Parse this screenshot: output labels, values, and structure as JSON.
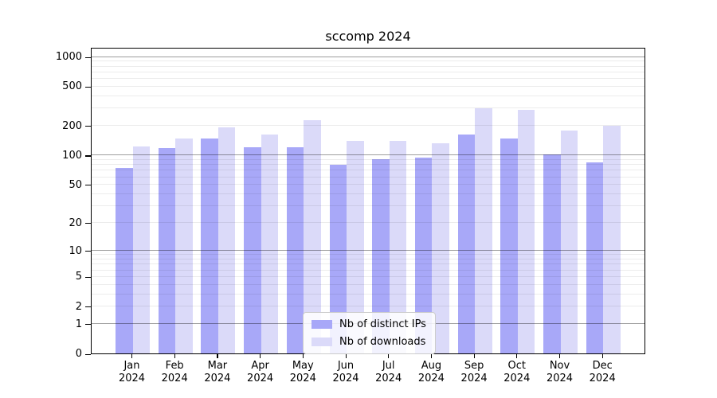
{
  "chart_data": {
    "type": "bar",
    "title": "sccomp 2024",
    "x_months": [
      "Jan",
      "Feb",
      "Mar",
      "Apr",
      "May",
      "Jun",
      "Jul",
      "Aug",
      "Sep",
      "Oct",
      "Nov",
      "Dec"
    ],
    "x_year": "2024",
    "series": [
      {
        "name": "Nb of distinct IPs",
        "color": "#a8a8f8",
        "values": [
          74,
          118,
          147,
          120,
          120,
          79,
          91,
          95,
          162,
          147,
          101,
          85
        ]
      },
      {
        "name": "Nb of downloads",
        "color": "#dbdaf9",
        "values": [
          122,
          147,
          193,
          161,
          225,
          140,
          141,
          133,
          300,
          288,
          177,
          200
        ]
      }
    ],
    "yscale": "log1p",
    "yticks": [
      0,
      1,
      2,
      5,
      10,
      20,
      50,
      100,
      200,
      500,
      1000
    ],
    "ylim": [
      0,
      1250
    ],
    "grid": {
      "show": true,
      "major_at_powers_of_ten": true,
      "minor_per_decade": [
        2,
        3,
        4,
        5,
        6,
        7,
        8,
        9
      ]
    },
    "legend_position": "bottom-center-inside"
  }
}
